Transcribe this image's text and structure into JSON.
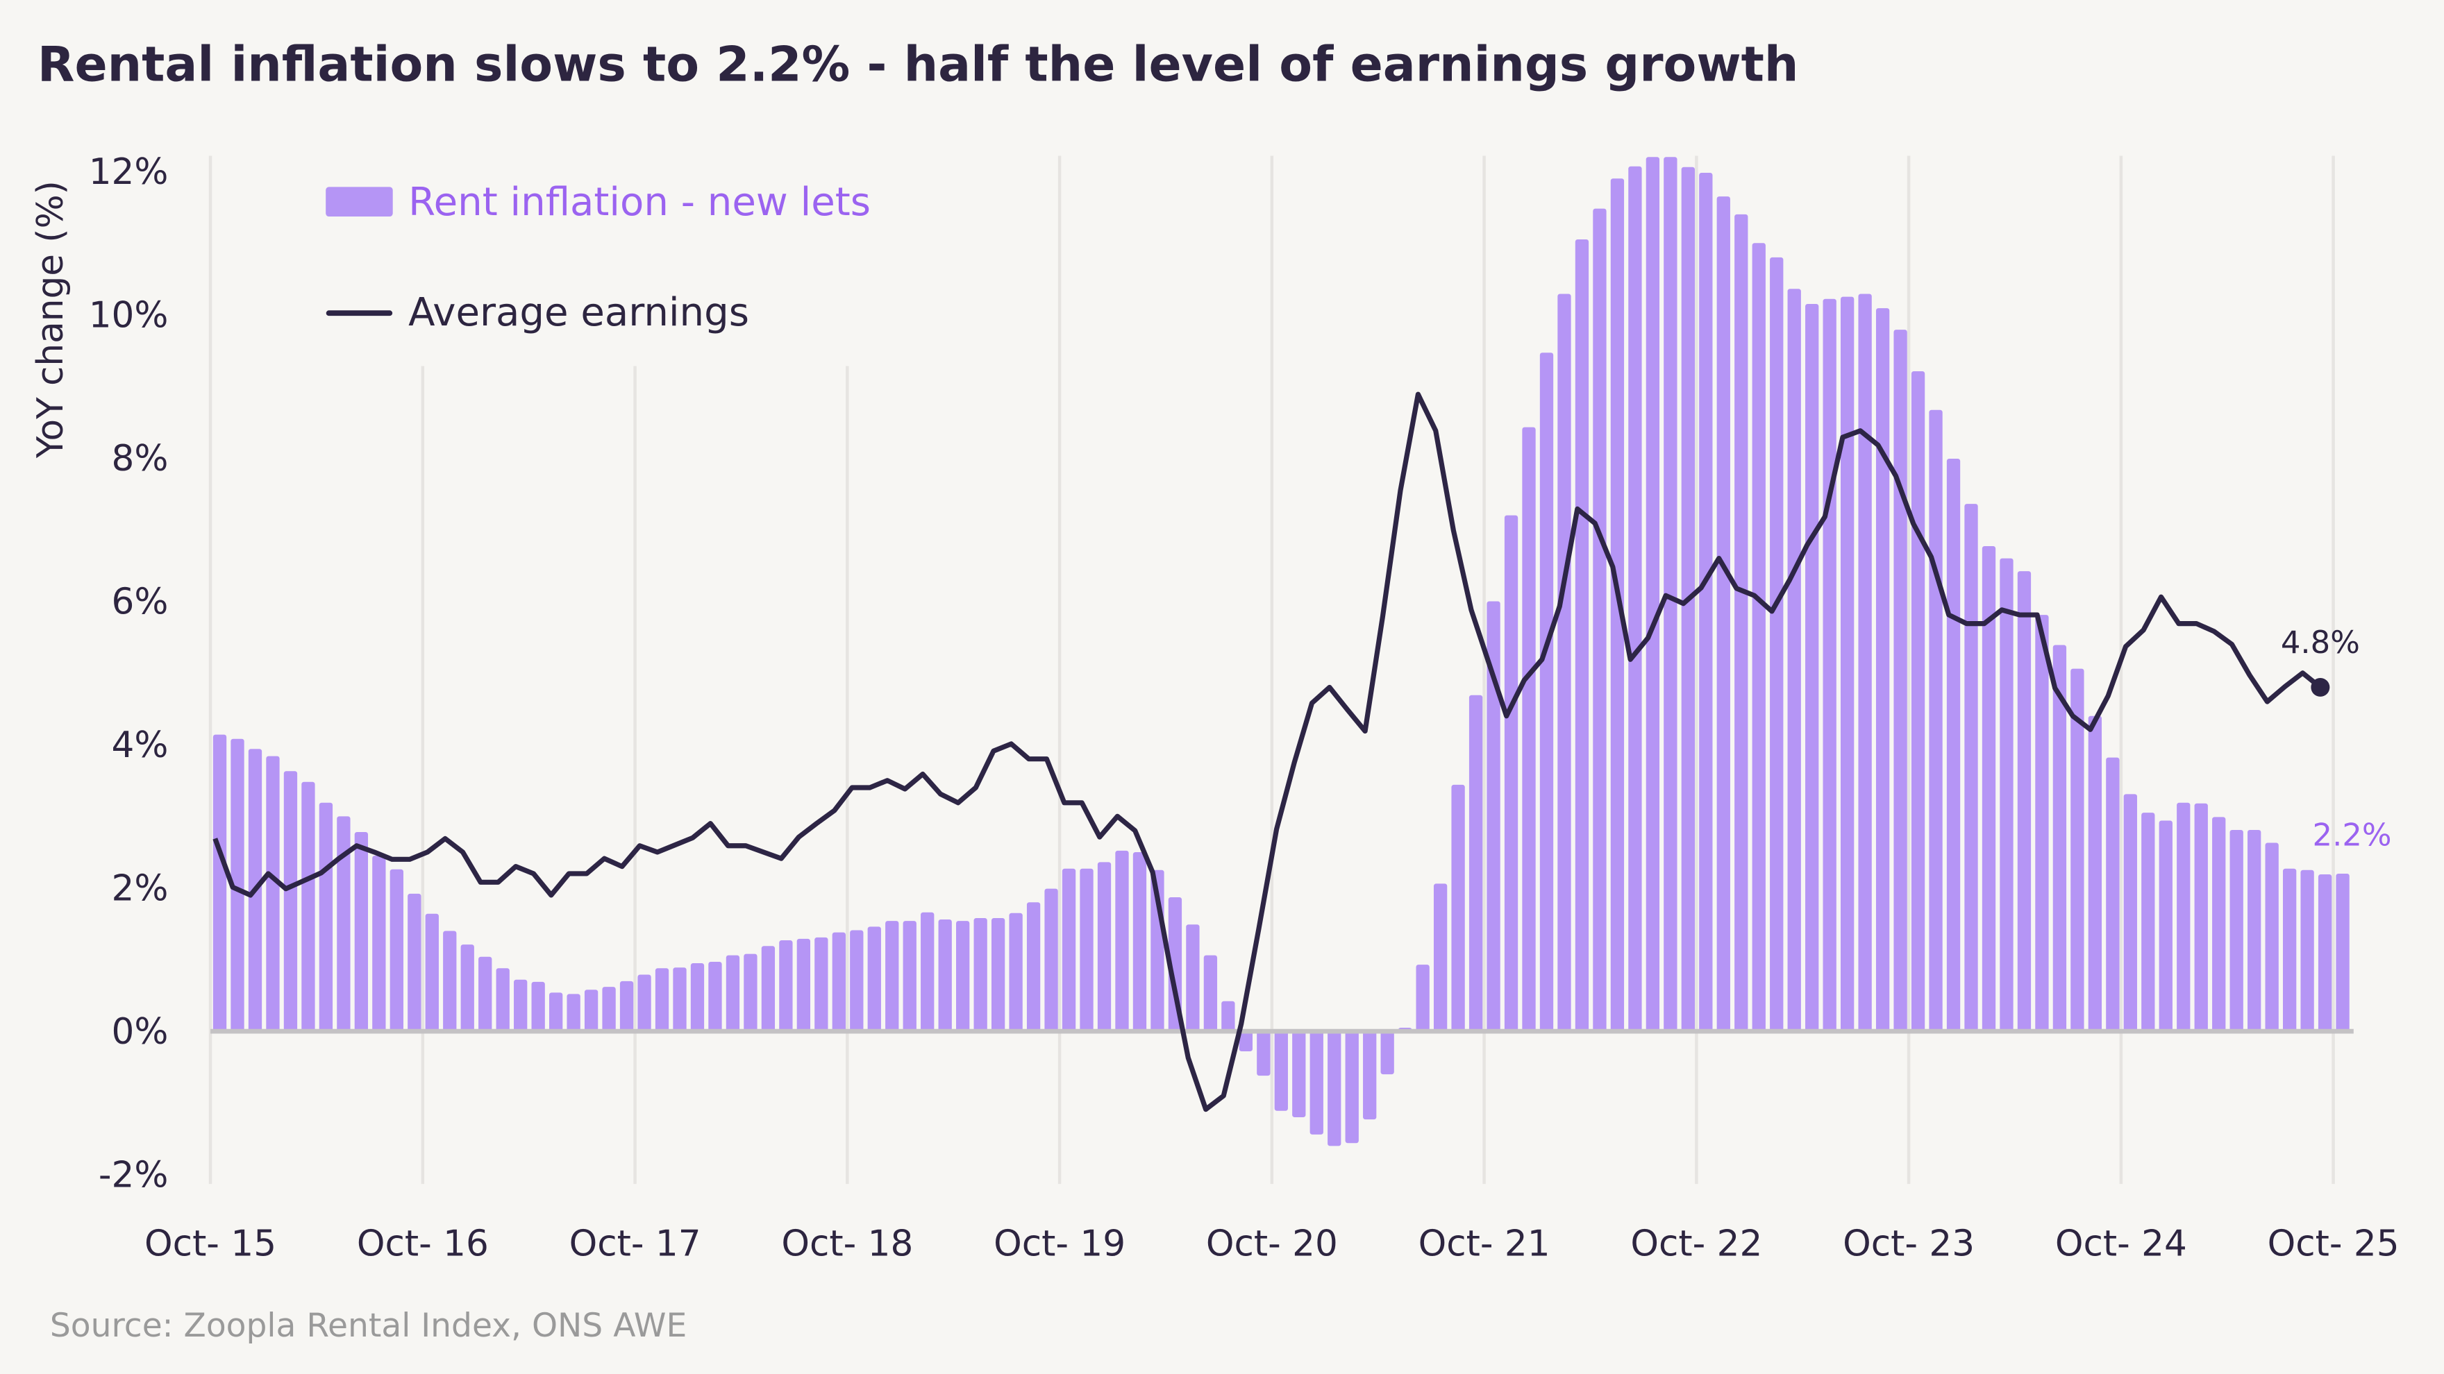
{
  "chart_data": {
    "type": "bar+line",
    "title": "Rental inflation slows to 2.2% - half the level of earnings growth",
    "ylabel": "YoY change (%)",
    "xlabel": "",
    "source": "Source: Zoopla Rental Index, ONS AWE",
    "ylim": [
      -2,
      12
    ],
    "yticks": [
      "-2%",
      "0%",
      "2%",
      "4%",
      "6%",
      "8%",
      "10%",
      "12%"
    ],
    "ytick_values": [
      -2,
      0,
      2,
      4,
      6,
      8,
      10,
      12
    ],
    "xticks": [
      "Oct- 15",
      "Oct- 16",
      "Oct- 17",
      "Oct- 18",
      "Oct- 19",
      "Oct- 20",
      "Oct- 21",
      "Oct- 22",
      "Oct- 23",
      "Oct- 24",
      "Oct- 25"
    ],
    "x_start": "Oct-2015",
    "x_end": "Oct-2025",
    "frequency": "monthly",
    "grid": "vertical",
    "legend_placement": "top-left",
    "colors": {
      "rent": "#b595f5",
      "rent_text": "#9b63f0",
      "earnings": "#2d2545",
      "grid": "#e6e4e1",
      "zero": "#c4c2c4"
    },
    "series": [
      {
        "name": "Rent inflation - new lets",
        "type": "bar",
        "values": [
          4.14,
          4.08,
          3.94,
          3.84,
          3.63,
          3.48,
          3.19,
          3.0,
          2.78,
          2.45,
          2.26,
          1.92,
          1.64,
          1.4,
          1.21,
          1.04,
          0.88,
          0.72,
          0.69,
          0.54,
          0.52,
          0.58,
          0.62,
          0.7,
          0.79,
          0.88,
          0.89,
          0.95,
          0.97,
          1.06,
          1.08,
          1.19,
          1.27,
          1.29,
          1.31,
          1.38,
          1.41,
          1.46,
          1.54,
          1.54,
          1.66,
          1.56,
          1.54,
          1.58,
          1.58,
          1.65,
          1.8,
          1.99,
          2.27,
          2.27,
          2.36,
          2.52,
          2.5,
          2.25,
          1.87,
          1.49,
          1.06,
          0.42,
          -0.28,
          -0.62,
          -1.11,
          -1.2,
          -1.44,
          -1.6,
          -1.56,
          -1.23,
          -0.6,
          0.05,
          0.93,
          2.06,
          3.44,
          4.69,
          6.0,
          7.2,
          8.43,
          9.47,
          10.29,
          11.05,
          11.48,
          11.9,
          12.07,
          12.2,
          12.2,
          12.06,
          11.98,
          11.65,
          11.4,
          11.0,
          10.8,
          10.36,
          10.15,
          10.22,
          10.25,
          10.29,
          10.09,
          9.79,
          9.21,
          8.67,
          7.99,
          7.36,
          6.77,
          6.6,
          6.42,
          5.81,
          5.39,
          5.06,
          4.4,
          3.82,
          3.31,
          3.05,
          2.94,
          3.19,
          3.18,
          2.99,
          2.81,
          2.81,
          2.63,
          2.27,
          2.25,
          2.19,
          2.2
        ],
        "end_label": "2.2%"
      },
      {
        "name": "Average earnings",
        "type": "line",
        "values": [
          2.69,
          2.01,
          1.9,
          2.2,
          1.99,
          2.1,
          2.21,
          2.41,
          2.59,
          2.5,
          2.4,
          2.4,
          2.5,
          2.69,
          2.5,
          2.08,
          2.08,
          2.3,
          2.2,
          1.9,
          2.2,
          2.2,
          2.41,
          2.3,
          2.59,
          2.5,
          2.6,
          2.7,
          2.9,
          2.59,
          2.59,
          2.5,
          2.41,
          2.71,
          2.9,
          3.08,
          3.4,
          3.4,
          3.5,
          3.38,
          3.59,
          3.31,
          3.19,
          3.4,
          3.91,
          4.01,
          3.8,
          3.8,
          3.19,
          3.19,
          2.71,
          3.0,
          2.8,
          2.22,
          0.88,
          -0.37,
          -1.09,
          -0.9,
          0.1,
          1.43,
          2.82,
          3.75,
          4.58,
          4.8,
          4.49,
          4.19,
          5.79,
          7.55,
          8.89,
          8.38,
          6.99,
          5.88,
          5.14,
          4.4,
          4.9,
          5.19,
          5.93,
          7.29,
          7.09,
          6.48,
          5.19,
          5.49,
          6.08,
          5.97,
          6.19,
          6.6,
          6.18,
          6.08,
          5.86,
          6.3,
          6.79,
          7.18,
          8.29,
          8.38,
          8.18,
          7.75,
          7.08,
          6.62,
          5.81,
          5.69,
          5.69,
          5.88,
          5.81,
          5.81,
          4.79,
          4.4,
          4.21,
          4.68,
          5.37,
          5.6,
          6.06,
          5.69,
          5.69,
          5.58,
          5.4,
          4.97,
          4.6,
          4.81,
          5.0,
          4.8
        ],
        "end_label": "4.8%"
      }
    ]
  }
}
